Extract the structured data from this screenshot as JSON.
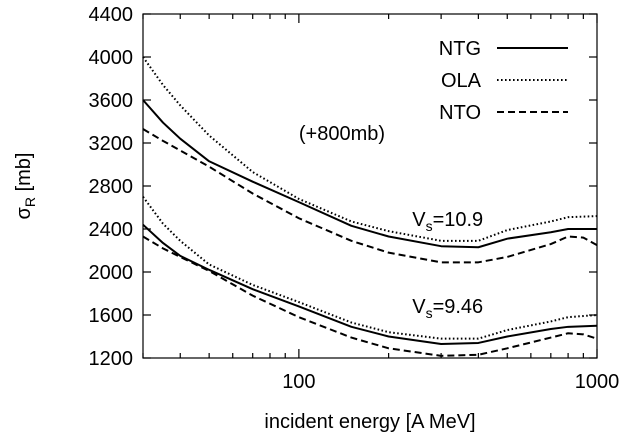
{
  "chart_data": {
    "type": "line",
    "title": "",
    "xlabel": "incident energy [A MeV]",
    "ylabel": {
      "main": "σ",
      "sub": "R",
      "unit": " [mb]"
    },
    "xscale": "log",
    "xlim": [
      30,
      1000
    ],
    "ylim": [
      1200,
      4400
    ],
    "x_ticks": [
      {
        "value": 100,
        "label": "100"
      },
      {
        "value": 1000,
        "label": "1000"
      }
    ],
    "y_ticks": [
      {
        "value": 1200,
        "label": "1200"
      },
      {
        "value": 1600,
        "label": "1600"
      },
      {
        "value": 2000,
        "label": "2000"
      },
      {
        "value": 2400,
        "label": "2400"
      },
      {
        "value": 2800,
        "label": "2800"
      },
      {
        "value": 3200,
        "label": "3200"
      },
      {
        "value": 3600,
        "label": "3600"
      },
      {
        "value": 4000,
        "label": "4000"
      },
      {
        "value": 4400,
        "label": "4400"
      }
    ],
    "grid": false,
    "legend_position": "top-right",
    "legend": [
      {
        "label": "NTG",
        "style": "solid"
      },
      {
        "label": "OLA",
        "style": "dotted"
      },
      {
        "label": "NTO",
        "style": "dashed"
      }
    ],
    "annotations": [
      {
        "id": "shift",
        "text": "(+800mb)",
        "x": 100,
        "y": 3230
      },
      {
        "id": "vs-upper",
        "main": "V",
        "sub": "s",
        "rest": "=10.9",
        "x": 240,
        "y": 2430
      },
      {
        "id": "vs-lower",
        "main": "V",
        "sub": "s",
        "rest": "=9.46",
        "x": 240,
        "y": 1620
      }
    ],
    "series": [
      {
        "name": "NTG",
        "group": "upper",
        "style": "solid",
        "points": [
          [
            30,
            3600
          ],
          [
            35,
            3390
          ],
          [
            40,
            3240
          ],
          [
            50,
            3030
          ],
          [
            70,
            2840
          ],
          [
            100,
            2650
          ],
          [
            150,
            2430
          ],
          [
            200,
            2330
          ],
          [
            300,
            2240
          ],
          [
            400,
            2230
          ],
          [
            500,
            2310
          ],
          [
            700,
            2370
          ],
          [
            800,
            2400
          ],
          [
            1000,
            2400
          ]
        ]
      },
      {
        "name": "OLA",
        "group": "upper",
        "style": "dotted",
        "points": [
          [
            30,
            4000
          ],
          [
            35,
            3740
          ],
          [
            40,
            3550
          ],
          [
            50,
            3270
          ],
          [
            70,
            2930
          ],
          [
            100,
            2680
          ],
          [
            150,
            2470
          ],
          [
            200,
            2380
          ],
          [
            300,
            2290
          ],
          [
            400,
            2290
          ],
          [
            500,
            2390
          ],
          [
            700,
            2470
          ],
          [
            800,
            2510
          ],
          [
            1000,
            2520
          ]
        ]
      },
      {
        "name": "NTO",
        "group": "upper",
        "style": "dashed",
        "points": [
          [
            30,
            3330
          ],
          [
            35,
            3220
          ],
          [
            40,
            3130
          ],
          [
            50,
            2980
          ],
          [
            70,
            2730
          ],
          [
            100,
            2500
          ],
          [
            150,
            2290
          ],
          [
            200,
            2180
          ],
          [
            300,
            2090
          ],
          [
            400,
            2090
          ],
          [
            500,
            2140
          ],
          [
            700,
            2260
          ],
          [
            800,
            2330
          ],
          [
            900,
            2320
          ],
          [
            1000,
            2250
          ]
        ]
      },
      {
        "name": "NTG",
        "group": "lower",
        "style": "solid",
        "points": [
          [
            30,
            2440
          ],
          [
            35,
            2270
          ],
          [
            40,
            2150
          ],
          [
            50,
            2020
          ],
          [
            70,
            1840
          ],
          [
            100,
            1680
          ],
          [
            150,
            1490
          ],
          [
            200,
            1400
          ],
          [
            300,
            1330
          ],
          [
            400,
            1340
          ],
          [
            500,
            1400
          ],
          [
            700,
            1470
          ],
          [
            800,
            1490
          ],
          [
            1000,
            1500
          ]
        ]
      },
      {
        "name": "OLA",
        "group": "lower",
        "style": "dotted",
        "points": [
          [
            30,
            2700
          ],
          [
            35,
            2450
          ],
          [
            40,
            2290
          ],
          [
            50,
            2070
          ],
          [
            70,
            1880
          ],
          [
            100,
            1720
          ],
          [
            150,
            1530
          ],
          [
            200,
            1440
          ],
          [
            300,
            1380
          ],
          [
            400,
            1380
          ],
          [
            500,
            1460
          ],
          [
            700,
            1540
          ],
          [
            800,
            1580
          ],
          [
            1000,
            1600
          ]
        ]
      },
      {
        "name": "NTO",
        "group": "lower",
        "style": "dashed",
        "points": [
          [
            30,
            2330
          ],
          [
            35,
            2220
          ],
          [
            40,
            2140
          ],
          [
            50,
            2010
          ],
          [
            70,
            1780
          ],
          [
            100,
            1580
          ],
          [
            150,
            1390
          ],
          [
            200,
            1290
          ],
          [
            300,
            1220
          ],
          [
            400,
            1230
          ],
          [
            500,
            1290
          ],
          [
            700,
            1390
          ],
          [
            800,
            1430
          ],
          [
            900,
            1420
          ],
          [
            1000,
            1380
          ]
        ]
      }
    ]
  }
}
